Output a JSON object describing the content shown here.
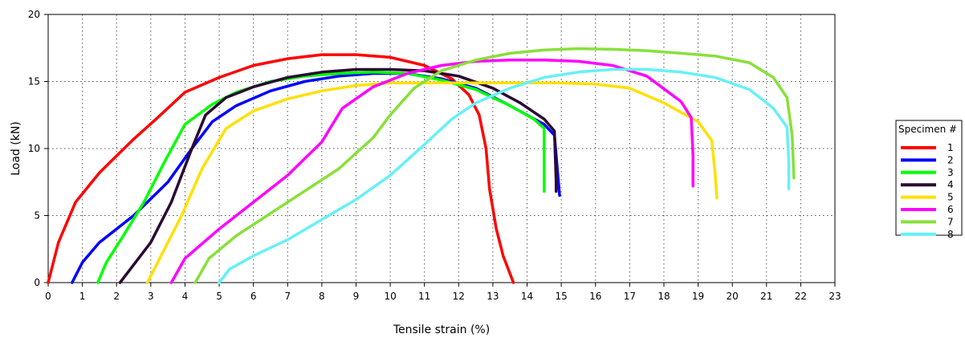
{
  "chart_data": {
    "type": "line",
    "xlabel": "Tensile strain (%)",
    "ylabel": "Load (kN)",
    "xlim": [
      0,
      23
    ],
    "ylim": [
      0,
      20
    ],
    "x_ticks": [
      0,
      1,
      2,
      3,
      4,
      5,
      6,
      7,
      8,
      9,
      10,
      11,
      12,
      13,
      14,
      15,
      16,
      17,
      18,
      19,
      20,
      21,
      22,
      23
    ],
    "y_ticks": [
      0,
      5,
      10,
      15,
      20
    ],
    "grid": true,
    "legend": {
      "title": "Specimen #",
      "placement": "right"
    },
    "series": [
      {
        "name": "1",
        "color": "#ff0000",
        "points": [
          [
            0,
            0
          ],
          [
            0.3,
            3
          ],
          [
            0.8,
            6
          ],
          [
            1.5,
            8.2
          ],
          [
            2.5,
            10.7
          ],
          [
            3.2,
            12.3
          ],
          [
            4,
            14.2
          ],
          [
            5,
            15.3
          ],
          [
            6,
            16.2
          ],
          [
            7,
            16.7
          ],
          [
            8,
            17.0
          ],
          [
            9,
            17.0
          ],
          [
            10,
            16.8
          ],
          [
            11,
            16.2
          ],
          [
            11.8,
            15.2
          ],
          [
            12.3,
            14
          ],
          [
            12.6,
            12.5
          ],
          [
            12.8,
            10
          ],
          [
            12.9,
            7
          ],
          [
            13.1,
            4
          ],
          [
            13.3,
            2
          ],
          [
            13.6,
            0
          ]
        ]
      },
      {
        "name": "2",
        "color": "#0000ff",
        "points": [
          [
            0.7,
            0
          ],
          [
            1,
            1.5
          ],
          [
            1.5,
            3
          ],
          [
            2.5,
            5
          ],
          [
            3.5,
            7.5
          ],
          [
            4.2,
            10
          ],
          [
            4.8,
            12
          ],
          [
            5.5,
            13.2
          ],
          [
            6.5,
            14.3
          ],
          [
            7.5,
            15
          ],
          [
            8.5,
            15.4
          ],
          [
            9.5,
            15.6
          ],
          [
            10.5,
            15.6
          ],
          [
            11.5,
            15.2
          ],
          [
            12.5,
            14.5
          ],
          [
            13.5,
            13.2
          ],
          [
            14.5,
            11.8
          ],
          [
            14.8,
            11
          ],
          [
            14.9,
            8
          ],
          [
            14.95,
            6.5
          ]
        ]
      },
      {
        "name": "3",
        "color": "#00ff00",
        "points": [
          [
            1.45,
            0
          ],
          [
            1.7,
            1.5
          ],
          [
            2.2,
            3.5
          ],
          [
            2.8,
            6
          ],
          [
            3.4,
            9
          ],
          [
            4,
            11.8
          ],
          [
            4.8,
            13.3
          ],
          [
            5.5,
            14.2
          ],
          [
            6.5,
            15
          ],
          [
            7.5,
            15.4
          ],
          [
            8.5,
            15.6
          ],
          [
            9.5,
            15.7
          ],
          [
            10.5,
            15.6
          ],
          [
            11.5,
            15.1
          ],
          [
            12.5,
            14.4
          ],
          [
            13.5,
            13.2
          ],
          [
            14.2,
            12.2
          ],
          [
            14.5,
            11.5
          ],
          [
            14.5,
            6.8
          ]
        ]
      },
      {
        "name": "4",
        "color": "#2a0a33",
        "points": [
          [
            2.1,
            0
          ],
          [
            2.4,
            1
          ],
          [
            3,
            3
          ],
          [
            3.6,
            6
          ],
          [
            4.2,
            10
          ],
          [
            4.6,
            12.5
          ],
          [
            5.2,
            13.8
          ],
          [
            6,
            14.6
          ],
          [
            7,
            15.3
          ],
          [
            8,
            15.7
          ],
          [
            9,
            15.9
          ],
          [
            10,
            15.9
          ],
          [
            11,
            15.8
          ],
          [
            12,
            15.4
          ],
          [
            13,
            14.5
          ],
          [
            13.8,
            13.4
          ],
          [
            14.5,
            12.2
          ],
          [
            14.8,
            11.3
          ],
          [
            14.85,
            7.5
          ],
          [
            14.85,
            6.8
          ]
        ]
      },
      {
        "name": "5",
        "color": "#ffe000",
        "points": [
          [
            2.9,
            0
          ],
          [
            3.3,
            2
          ],
          [
            3.9,
            5
          ],
          [
            4.5,
            8.5
          ],
          [
            5.2,
            11.5
          ],
          [
            6,
            12.8
          ],
          [
            7,
            13.7
          ],
          [
            8,
            14.3
          ],
          [
            9,
            14.7
          ],
          [
            10,
            14.9
          ],
          [
            11,
            14.9
          ],
          [
            12,
            14.9
          ],
          [
            13,
            14.9
          ],
          [
            14,
            14.9
          ],
          [
            15,
            14.9
          ],
          [
            16,
            14.8
          ],
          [
            17,
            14.5
          ],
          [
            18,
            13.4
          ],
          [
            19,
            12
          ],
          [
            19.4,
            10.6
          ],
          [
            19.5,
            8
          ],
          [
            19.55,
            6.3
          ]
        ]
      },
      {
        "name": "6",
        "color": "#ff00ff",
        "points": [
          [
            3.6,
            0
          ],
          [
            4,
            1.8
          ],
          [
            5,
            4
          ],
          [
            6,
            6
          ],
          [
            7,
            8
          ],
          [
            8,
            10.5
          ],
          [
            8.6,
            13
          ],
          [
            9.5,
            14.6
          ],
          [
            10.5,
            15.6
          ],
          [
            11.5,
            16.2
          ],
          [
            12.5,
            16.5
          ],
          [
            13.5,
            16.6
          ],
          [
            14.5,
            16.6
          ],
          [
            15.5,
            16.5
          ],
          [
            16.5,
            16.2
          ],
          [
            17.5,
            15.4
          ],
          [
            18.5,
            13.5
          ],
          [
            18.8,
            12.3
          ],
          [
            18.85,
            9.5
          ],
          [
            18.85,
            7.2
          ]
        ]
      },
      {
        "name": "7",
        "color": "#88e03a",
        "points": [
          [
            4.3,
            0
          ],
          [
            4.7,
            1.8
          ],
          [
            5.5,
            3.5
          ],
          [
            7,
            6
          ],
          [
            8.5,
            8.5
          ],
          [
            9.5,
            10.8
          ],
          [
            10,
            12.5
          ],
          [
            10.7,
            14.5
          ],
          [
            11.5,
            15.8
          ],
          [
            12.5,
            16.6
          ],
          [
            13.5,
            17.1
          ],
          [
            14.5,
            17.35
          ],
          [
            15.5,
            17.45
          ],
          [
            16.5,
            17.4
          ],
          [
            17.5,
            17.3
          ],
          [
            18.5,
            17.1
          ],
          [
            19.5,
            16.9
          ],
          [
            20.5,
            16.4
          ],
          [
            21.2,
            15.3
          ],
          [
            21.6,
            13.8
          ],
          [
            21.75,
            11
          ],
          [
            21.8,
            7.8
          ]
        ]
      },
      {
        "name": "8",
        "color": "#66f0f8",
        "points": [
          [
            5,
            0
          ],
          [
            5.3,
            1
          ],
          [
            6,
            2
          ],
          [
            7,
            3.2
          ],
          [
            8,
            4.7
          ],
          [
            9,
            6.2
          ],
          [
            10,
            8
          ],
          [
            11,
            10.3
          ],
          [
            11.8,
            12.2
          ],
          [
            12.5,
            13.4
          ],
          [
            13.5,
            14.5
          ],
          [
            14.5,
            15.3
          ],
          [
            15.5,
            15.7
          ],
          [
            16.5,
            15.9
          ],
          [
            17.5,
            15.9
          ],
          [
            18.5,
            15.7
          ],
          [
            19.5,
            15.3
          ],
          [
            20.5,
            14.4
          ],
          [
            21.2,
            13
          ],
          [
            21.6,
            11.6
          ],
          [
            21.65,
            9
          ],
          [
            21.65,
            7
          ]
        ]
      }
    ]
  }
}
